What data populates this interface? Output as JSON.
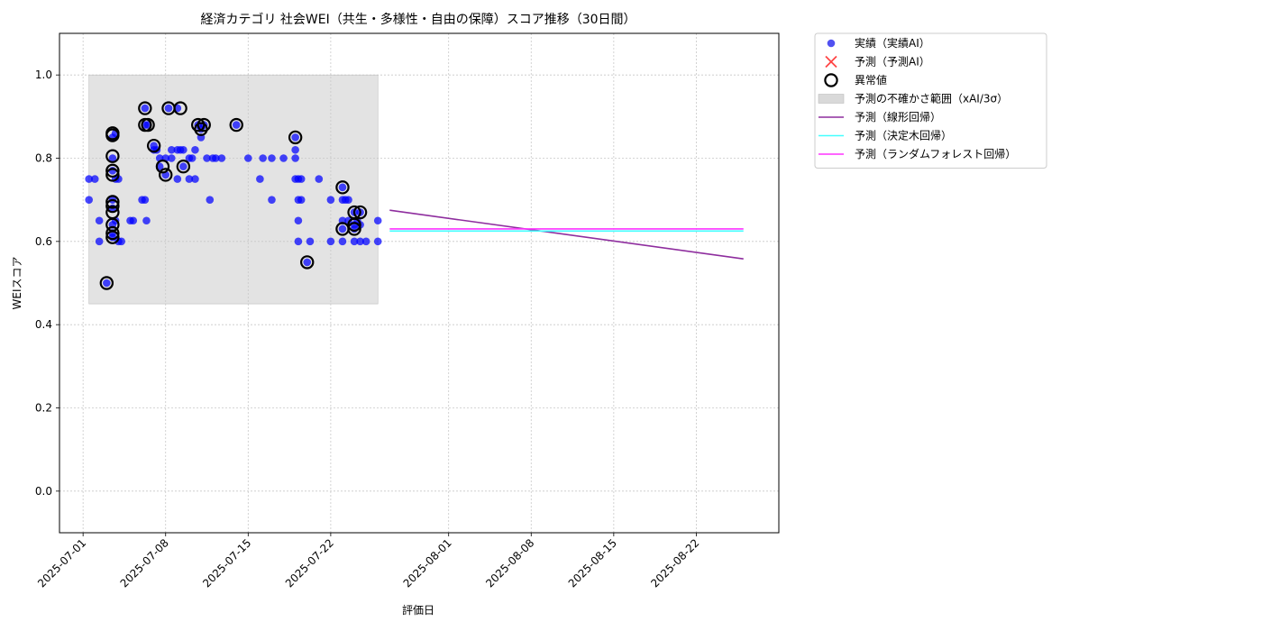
{
  "chart_data": {
    "type": "scatter",
    "title": "経済カテゴリ 社会WEI（共生・多様性・自由の保障）スコア推移（30日間）",
    "xlabel": "評価日",
    "ylabel": "WEIスコア",
    "xlim": [
      "2025-06-29",
      "2025-08-29"
    ],
    "ylim": [
      -0.1,
      1.1
    ],
    "xticks": [
      "2025-07-01",
      "2025-07-08",
      "2025-07-15",
      "2025-07-22",
      "2025-08-01",
      "2025-08-08",
      "2025-08-15",
      "2025-08-22"
    ],
    "yticks": [
      0.0,
      0.2,
      0.4,
      0.6,
      0.8,
      1.0
    ],
    "ytick_labels": [
      "0.0",
      "0.2",
      "0.4",
      "0.6",
      "0.8",
      "1.0"
    ],
    "grid": true,
    "legend_position": "outside-top-right",
    "legend": [
      {
        "label": "実績（実績AI）",
        "kind": "dot",
        "color": "#3333ee"
      },
      {
        "label": "予測（予測AI）",
        "kind": "cross",
        "color": "#ff4444"
      },
      {
        "label": "異常値",
        "kind": "ring",
        "color": "#000000"
      },
      {
        "label": "予測の不確かさ範囲（xAI/3σ）",
        "kind": "band",
        "color": "#d9d9d9"
      },
      {
        "label": "予測（線形回帰）",
        "kind": "line",
        "color": "#8e2d9e"
      },
      {
        "label": "予測（決定木回帰）",
        "kind": "line",
        "color": "#44ffff"
      },
      {
        "label": "予測（ランダムフォレスト回帰）",
        "kind": "line",
        "color": "#ff33ff"
      }
    ],
    "uncertainty_band": {
      "x": [
        "2025-07-01 12:00",
        "2025-07-26"
      ],
      "y": [
        0.45,
        1.0
      ]
    },
    "actual": [
      {
        "x": "2025-07-01 12:00",
        "y": 0.75
      },
      {
        "x": "2025-07-01 12:00",
        "y": 0.7
      },
      {
        "x": "2025-07-02",
        "y": 0.75
      },
      {
        "x": "2025-07-02 09:00",
        "y": 0.65
      },
      {
        "x": "2025-07-02 09:00",
        "y": 0.6
      },
      {
        "x": "2025-07-03",
        "y": 0.5
      },
      {
        "x": "2025-07-03 12:00",
        "y": 0.85
      },
      {
        "x": "2025-07-03 12:00",
        "y": 0.8
      },
      {
        "x": "2025-07-03 12:00",
        "y": 0.77
      },
      {
        "x": "2025-07-03 12:00",
        "y": 0.7
      },
      {
        "x": "2025-07-03 12:00",
        "y": 0.68
      },
      {
        "x": "2025-07-03 12:00",
        "y": 0.64
      },
      {
        "x": "2025-07-03 12:00",
        "y": 0.62
      },
      {
        "x": "2025-07-03 12:00",
        "y": 0.61
      },
      {
        "x": "2025-07-03 18:00",
        "y": 0.86
      },
      {
        "x": "2025-07-03 18:00",
        "y": 0.75
      },
      {
        "x": "2025-07-03 18:00",
        "y": 0.65
      },
      {
        "x": "2025-07-04",
        "y": 0.75
      },
      {
        "x": "2025-07-04",
        "y": 0.6
      },
      {
        "x": "2025-07-04 06:00",
        "y": 0.6
      },
      {
        "x": "2025-07-05",
        "y": 0.65
      },
      {
        "x": "2025-07-05 06:00",
        "y": 0.65
      },
      {
        "x": "2025-07-06",
        "y": 0.7
      },
      {
        "x": "2025-07-06 06:00",
        "y": 0.92
      },
      {
        "x": "2025-07-06 06:00",
        "y": 0.88
      },
      {
        "x": "2025-07-06 06:00",
        "y": 0.7
      },
      {
        "x": "2025-07-06 09:00",
        "y": 0.65
      },
      {
        "x": "2025-07-06 12:00",
        "y": 0.88
      },
      {
        "x": "2025-07-07",
        "y": 0.83
      },
      {
        "x": "2025-07-07",
        "y": 0.82
      },
      {
        "x": "2025-07-07 06:00",
        "y": 0.82
      },
      {
        "x": "2025-07-07 12:00",
        "y": 0.78
      },
      {
        "x": "2025-07-07 12:00",
        "y": 0.8
      },
      {
        "x": "2025-07-08",
        "y": 0.76
      },
      {
        "x": "2025-07-08",
        "y": 0.8
      },
      {
        "x": "2025-07-08 06:00",
        "y": 0.92
      },
      {
        "x": "2025-07-08 12:00",
        "y": 0.8
      },
      {
        "x": "2025-07-08 12:00",
        "y": 0.82
      },
      {
        "x": "2025-07-09",
        "y": 0.75
      },
      {
        "x": "2025-07-09",
        "y": 0.92
      },
      {
        "x": "2025-07-09",
        "y": 0.82
      },
      {
        "x": "2025-07-09 06:00",
        "y": 0.82
      },
      {
        "x": "2025-07-09 12:00",
        "y": 0.78
      },
      {
        "x": "2025-07-09 12:00",
        "y": 0.82
      },
      {
        "x": "2025-07-10",
        "y": 0.75
      },
      {
        "x": "2025-07-10",
        "y": 0.8
      },
      {
        "x": "2025-07-10 06:00",
        "y": 0.8
      },
      {
        "x": "2025-07-10 12:00",
        "y": 0.75
      },
      {
        "x": "2025-07-10 12:00",
        "y": 0.82
      },
      {
        "x": "2025-07-10 18:00",
        "y": 0.88
      },
      {
        "x": "2025-07-11",
        "y": 0.85
      },
      {
        "x": "2025-07-11",
        "y": 0.87
      },
      {
        "x": "2025-07-11 06:00",
        "y": 0.88
      },
      {
        "x": "2025-07-11 12:00",
        "y": 0.8
      },
      {
        "x": "2025-07-11 18:00",
        "y": 0.7
      },
      {
        "x": "2025-07-12",
        "y": 0.8
      },
      {
        "x": "2025-07-12 06:00",
        "y": 0.8
      },
      {
        "x": "2025-07-12 18:00",
        "y": 0.8
      },
      {
        "x": "2025-07-14",
        "y": 0.88
      },
      {
        "x": "2025-07-15",
        "y": 0.8
      },
      {
        "x": "2025-07-16",
        "y": 0.75
      },
      {
        "x": "2025-07-16 06:00",
        "y": 0.8
      },
      {
        "x": "2025-07-17",
        "y": 0.8
      },
      {
        "x": "2025-07-17",
        "y": 0.7
      },
      {
        "x": "2025-07-18",
        "y": 0.8
      },
      {
        "x": "2025-07-19",
        "y": 0.85
      },
      {
        "x": "2025-07-19",
        "y": 0.82
      },
      {
        "x": "2025-07-19",
        "y": 0.75
      },
      {
        "x": "2025-07-19",
        "y": 0.8
      },
      {
        "x": "2025-07-19 06:00",
        "y": 0.75
      },
      {
        "x": "2025-07-19 06:00",
        "y": 0.7
      },
      {
        "x": "2025-07-19 06:00",
        "y": 0.65
      },
      {
        "x": "2025-07-19 06:00",
        "y": 0.6
      },
      {
        "x": "2025-07-19 12:00",
        "y": 0.75
      },
      {
        "x": "2025-07-19 12:00",
        "y": 0.7
      },
      {
        "x": "2025-07-20",
        "y": 0.55
      },
      {
        "x": "2025-07-20 06:00",
        "y": 0.6
      },
      {
        "x": "2025-07-21",
        "y": 0.75
      },
      {
        "x": "2025-07-22",
        "y": 0.7
      },
      {
        "x": "2025-07-22",
        "y": 0.6
      },
      {
        "x": "2025-07-23",
        "y": 0.73
      },
      {
        "x": "2025-07-23",
        "y": 0.7
      },
      {
        "x": "2025-07-23",
        "y": 0.65
      },
      {
        "x": "2025-07-23",
        "y": 0.63
      },
      {
        "x": "2025-07-23",
        "y": 0.6
      },
      {
        "x": "2025-07-23 06:00",
        "y": 0.7
      },
      {
        "x": "2025-07-23 12:00",
        "y": 0.7
      },
      {
        "x": "2025-07-23 12:00",
        "y": 0.65
      },
      {
        "x": "2025-07-24",
        "y": 0.67
      },
      {
        "x": "2025-07-24",
        "y": 0.64
      },
      {
        "x": "2025-07-24",
        "y": 0.63
      },
      {
        "x": "2025-07-24",
        "y": 0.6
      },
      {
        "x": "2025-07-24 06:00",
        "y": 0.65
      },
      {
        "x": "2025-07-24 12:00",
        "y": 0.67
      },
      {
        "x": "2025-07-24 12:00",
        "y": 0.64
      },
      {
        "x": "2025-07-24 12:00",
        "y": 0.6
      },
      {
        "x": "2025-07-25",
        "y": 0.6
      },
      {
        "x": "2025-07-26",
        "y": 0.65
      },
      {
        "x": "2025-07-26",
        "y": 0.6
      }
    ],
    "anomalies": [
      {
        "x": "2025-07-03",
        "y": 0.5
      },
      {
        "x": "2025-07-03 12:00",
        "y": 0.855
      },
      {
        "x": "2025-07-03 12:00",
        "y": 0.86
      },
      {
        "x": "2025-07-03 12:00",
        "y": 0.805
      },
      {
        "x": "2025-07-03 12:00",
        "y": 0.77
      },
      {
        "x": "2025-07-03 12:00",
        "y": 0.76
      },
      {
        "x": "2025-07-03 12:00",
        "y": 0.695
      },
      {
        "x": "2025-07-03 12:00",
        "y": 0.685
      },
      {
        "x": "2025-07-03 12:00",
        "y": 0.67
      },
      {
        "x": "2025-07-03 12:00",
        "y": 0.64
      },
      {
        "x": "2025-07-03 12:00",
        "y": 0.62
      },
      {
        "x": "2025-07-03 12:00",
        "y": 0.61
      },
      {
        "x": "2025-07-06 06:00",
        "y": 0.92
      },
      {
        "x": "2025-07-06 06:00",
        "y": 0.88
      },
      {
        "x": "2025-07-06 12:00",
        "y": 0.88
      },
      {
        "x": "2025-07-07",
        "y": 0.83
      },
      {
        "x": "2025-07-07 18:00",
        "y": 0.78
      },
      {
        "x": "2025-07-08",
        "y": 0.76
      },
      {
        "x": "2025-07-08 06:00",
        "y": 0.92
      },
      {
        "x": "2025-07-09 06:00",
        "y": 0.92
      },
      {
        "x": "2025-07-09 12:00",
        "y": 0.78
      },
      {
        "x": "2025-07-10 18:00",
        "y": 0.88
      },
      {
        "x": "2025-07-11",
        "y": 0.87
      },
      {
        "x": "2025-07-11 06:00",
        "y": 0.88
      },
      {
        "x": "2025-07-14",
        "y": 0.88
      },
      {
        "x": "2025-07-19",
        "y": 0.85
      },
      {
        "x": "2025-07-20",
        "y": 0.55
      },
      {
        "x": "2025-07-23",
        "y": 0.73
      },
      {
        "x": "2025-07-23",
        "y": 0.63
      },
      {
        "x": "2025-07-24",
        "y": 0.67
      },
      {
        "x": "2025-07-24",
        "y": 0.64
      },
      {
        "x": "2025-07-24",
        "y": 0.63
      },
      {
        "x": "2025-07-24 12:00",
        "y": 0.67
      }
    ],
    "prediction_lines": [
      {
        "name": "予測（線形回帰）",
        "color": "#8e2d9e",
        "x": [
          "2025-07-27",
          "2025-08-26"
        ],
        "y": [
          0.675,
          0.558
        ]
      },
      {
        "name": "予測（決定木回帰）",
        "color": "#44ffff",
        "x": [
          "2025-07-27",
          "2025-08-26"
        ],
        "y": [
          0.625,
          0.625
        ]
      },
      {
        "name": "予測（ランダムフォレスト回帰）",
        "color": "#ff33ff",
        "x": [
          "2025-07-27",
          "2025-08-26"
        ],
        "y": [
          0.63,
          0.63
        ]
      }
    ]
  }
}
